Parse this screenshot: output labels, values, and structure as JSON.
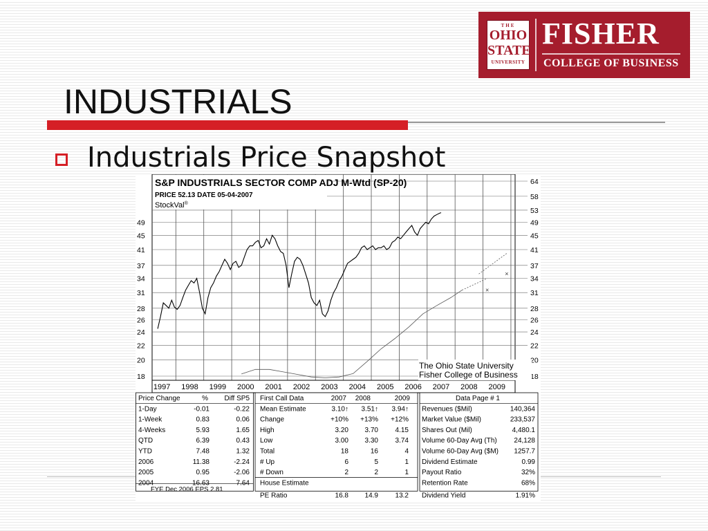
{
  "header": {
    "title": "INDUSTRIALS",
    "subtitle": "Industrials Price Snapshot"
  },
  "logo": {
    "osu_top": "THE",
    "osu_mid1": "OHIO",
    "osu_mid2": "STATE",
    "osu_bottom": "UNIVERSITY",
    "name": "FISHER",
    "school": "COLLEGE OF BUSINESS"
  },
  "colors": {
    "accent_red": "#d51f26",
    "brand_maroon": "#a51d2d"
  },
  "chart_data": {
    "type": "line",
    "title": "S&P INDUSTRIALS SECTOR COMP ADJ M-Wtd (SP-20)",
    "price_line": "PRICE 52.13  DATE 05-04-2007",
    "brand": "StockVal",
    "brand_mark": "®",
    "credit": [
      "The Ohio State University",
      "Fisher College of Business"
    ],
    "x_labels": [
      "1997",
      "1998",
      "1999",
      "2000",
      "2001",
      "2002",
      "2003",
      "2004",
      "2005",
      "2006",
      "2007",
      "2008",
      "2009"
    ],
    "left_y_ticks": [
      49,
      45,
      41,
      37,
      34,
      31,
      28,
      26,
      24,
      22,
      20,
      18
    ],
    "right_y_ticks": [
      64,
      58,
      53,
      49,
      45,
      41,
      37,
      34,
      31,
      28,
      26,
      24,
      22,
      20,
      18
    ],
    "scale": "log",
    "grid": true,
    "series": [
      {
        "values": [
          [
            1997.0,
            24.5
          ],
          [
            1997.1,
            26.5
          ],
          [
            1997.2,
            29
          ],
          [
            1997.3,
            28.5
          ],
          [
            1997.4,
            28
          ],
          [
            1997.5,
            29.5
          ],
          [
            1997.6,
            28.2
          ],
          [
            1997.7,
            27.8
          ],
          [
            1997.8,
            28.5
          ],
          [
            1997.9,
            30
          ],
          [
            1998.0,
            31.5
          ],
          [
            1998.1,
            32.5
          ],
          [
            1998.2,
            33.5
          ],
          [
            1998.3,
            33
          ],
          [
            1998.4,
            34
          ],
          [
            1998.5,
            31
          ],
          [
            1998.6,
            28
          ],
          [
            1998.7,
            27
          ],
          [
            1998.8,
            30
          ],
          [
            1998.9,
            32
          ],
          [
            1999.0,
            33
          ],
          [
            1999.1,
            34.5
          ],
          [
            1999.2,
            35.5
          ],
          [
            1999.3,
            37
          ],
          [
            1999.4,
            38.5
          ],
          [
            1999.5,
            37.5
          ],
          [
            1999.6,
            36
          ],
          [
            1999.7,
            37.5
          ],
          [
            1999.8,
            38
          ],
          [
            1999.9,
            36.5
          ],
          [
            2000.0,
            37
          ],
          [
            2000.1,
            39
          ],
          [
            2000.2,
            41
          ],
          [
            2000.3,
            42
          ],
          [
            2000.4,
            42
          ],
          [
            2000.5,
            43
          ],
          [
            2000.6,
            43.5
          ],
          [
            2000.7,
            41.5
          ],
          [
            2000.8,
            42
          ],
          [
            2000.9,
            44
          ],
          [
            2001.0,
            42.5
          ],
          [
            2001.1,
            45
          ],
          [
            2001.2,
            44
          ],
          [
            2001.3,
            42
          ],
          [
            2001.4,
            40.5
          ],
          [
            2001.5,
            40
          ],
          [
            2001.6,
            37
          ],
          [
            2001.7,
            32
          ],
          [
            2001.8,
            35
          ],
          [
            2001.9,
            38
          ],
          [
            2002.0,
            39
          ],
          [
            2002.1,
            38.5
          ],
          [
            2002.2,
            37
          ],
          [
            2002.3,
            35
          ],
          [
            2002.4,
            33
          ],
          [
            2002.5,
            30
          ],
          [
            2002.6,
            29
          ],
          [
            2002.7,
            28.5
          ],
          [
            2002.8,
            29.5
          ],
          [
            2002.9,
            27
          ],
          [
            2003.0,
            26.5
          ],
          [
            2003.1,
            27.5
          ],
          [
            2003.2,
            29.5
          ],
          [
            2003.3,
            31
          ],
          [
            2003.4,
            32
          ],
          [
            2003.5,
            33.5
          ],
          [
            2003.6,
            34.5
          ],
          [
            2003.7,
            36
          ],
          [
            2003.8,
            37.5
          ],
          [
            2003.9,
            38
          ],
          [
            2004.0,
            38.5
          ],
          [
            2004.1,
            39
          ],
          [
            2004.2,
            40
          ],
          [
            2004.3,
            41.5
          ],
          [
            2004.4,
            42
          ],
          [
            2004.5,
            41
          ],
          [
            2004.6,
            41.5
          ],
          [
            2004.7,
            42
          ],
          [
            2004.8,
            41
          ],
          [
            2004.9,
            41.5
          ],
          [
            2005.0,
            41.5
          ],
          [
            2005.1,
            42
          ],
          [
            2005.2,
            41
          ],
          [
            2005.3,
            41.5
          ],
          [
            2005.4,
            43
          ],
          [
            2005.5,
            43.5
          ],
          [
            2005.6,
            44.5
          ],
          [
            2005.7,
            44
          ],
          [
            2005.8,
            45
          ],
          [
            2005.9,
            46
          ],
          [
            2006.0,
            47
          ],
          [
            2006.1,
            48
          ],
          [
            2006.2,
            46
          ],
          [
            2006.3,
            45
          ],
          [
            2006.4,
            47
          ],
          [
            2006.5,
            48
          ],
          [
            2006.6,
            49
          ],
          [
            2006.7,
            48.5
          ],
          [
            2006.8,
            50
          ],
          [
            2006.9,
            51
          ],
          [
            2007.0,
            51.5
          ],
          [
            2007.1,
            52
          ],
          [
            2007.15,
            52.13
          ]
        ]
      },
      {
        "values": [
          [
            2000.0,
            18.25
          ],
          [
            2000.5,
            18.8
          ],
          [
            2001.0,
            18.8
          ],
          [
            2001.5,
            18.5
          ],
          [
            2002.0,
            18.2
          ],
          [
            2002.5,
            17.9
          ],
          [
            2003.0,
            17.8
          ],
          [
            2003.5,
            17.9
          ],
          [
            2004.0,
            18.3
          ],
          [
            2004.5,
            19.8
          ],
          [
            2005.0,
            21.5
          ],
          [
            2005.5,
            23
          ],
          [
            2006.0,
            24.8
          ],
          [
            2006.5,
            27
          ],
          [
            2007.0,
            28.5
          ],
          [
            2007.5,
            30
          ],
          [
            2007.9,
            31.5
          ]
        ]
      },
      {
        "values": [
          [
            2008.5,
            35
          ],
          [
            2009.5,
            40
          ]
        ]
      }
    ],
    "table": {
      "left": {
        "headers": [
          "Price Change",
          "%",
          "Diff SP5"
        ],
        "rows": [
          [
            "1-Day",
            "-0.01",
            "-0.22"
          ],
          [
            "1-Week",
            "0.83",
            "0.06"
          ],
          [
            "4-Weeks",
            "5.93",
            "1.65"
          ],
          [
            "QTD",
            "6.39",
            "0.43"
          ],
          [
            "YTD",
            "7.48",
            "1.32"
          ],
          [
            "2006",
            "11.38",
            "-2.24"
          ],
          [
            "2005",
            "0.95",
            "-2.06"
          ],
          [
            "2004",
            "16.63",
            "7.64"
          ]
        ],
        "footer": "FYE  Dec  2006  EPS  2.81"
      },
      "middle": {
        "headers": [
          "First Call Data",
          "2007",
          "2008",
          "2009"
        ],
        "rows": [
          [
            "Mean Estimate",
            "3.10↑",
            "3.51↑",
            "3.94↑"
          ],
          [
            "Change",
            "+10%",
            "+13%",
            "+12%"
          ],
          [
            "High",
            "3.20",
            "3.70",
            "4.15"
          ],
          [
            "Low",
            "3.00",
            "3.30",
            "3.74"
          ],
          [
            "Total",
            "18",
            "16",
            "4"
          ],
          [
            "# Up",
            "6",
            "5",
            "1"
          ],
          [
            "# Down",
            "2",
            "2",
            "1"
          ],
          [
            "House Estimate",
            "",
            "",
            ""
          ],
          [
            "PE Ratio",
            "16.8",
            "14.9",
            "13.2"
          ]
        ]
      },
      "right": {
        "header": "Data Page # 1",
        "rows": [
          [
            "Revenues ($Mil)",
            "140,364"
          ],
          [
            "Market Value ($Mil)",
            "233,537"
          ],
          [
            "Shares Out (Mil)",
            "4,480.1"
          ],
          [
            "Volume 60-Day Avg (Th)",
            "24,128"
          ],
          [
            "Volume 60-Day Avg ($M)",
            "1257.7"
          ],
          [
            "Dividend Estimate",
            "0.99"
          ],
          [
            "Payout Ratio",
            "32%"
          ],
          [
            "Retention Rate",
            "68%"
          ],
          [
            "Dividend Yield",
            "1.91%"
          ]
        ]
      }
    }
  }
}
